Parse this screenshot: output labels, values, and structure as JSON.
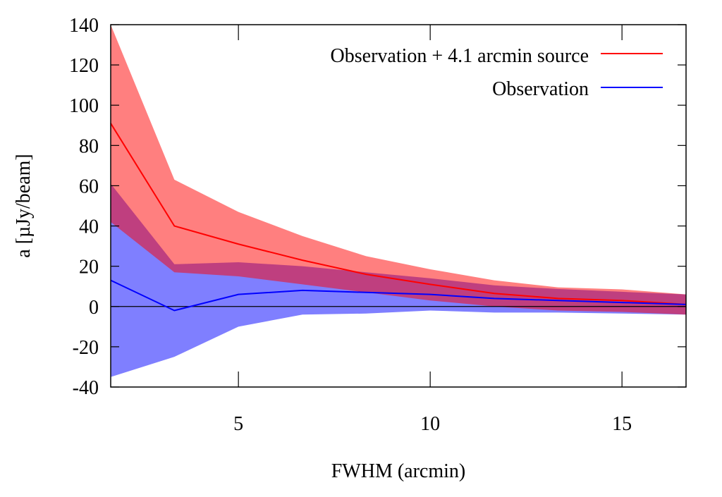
{
  "chart_data": {
    "type": "line",
    "title": "",
    "xlabel": "FWHM (arcmin)",
    "ylabel": "a [µJy/beam]",
    "xlim": [
      1.67,
      16.67
    ],
    "ylim": [
      -40,
      140
    ],
    "xticks": [
      5,
      10,
      15
    ],
    "yticks": [
      -40,
      -20,
      0,
      20,
      40,
      60,
      80,
      100,
      120,
      140
    ],
    "grid": false,
    "zero_line": true,
    "legend_position": "top-right",
    "x": [
      1.67,
      3.33,
      5,
      6.67,
      8.33,
      10,
      11.67,
      13.33,
      15,
      16.67
    ],
    "series": [
      {
        "name": "Observation + 4.1 arcmin source",
        "color": "#ff0000",
        "values": [
          91,
          40,
          31,
          23,
          16,
          11,
          6.5,
          4,
          3,
          1
        ],
        "band_upper": [
          140,
          63,
          47,
          35,
          25,
          18.5,
          13,
          9.5,
          8.5,
          6
        ],
        "band_lower": [
          42,
          17,
          15,
          11,
          7,
          3,
          0,
          -2,
          -2.7,
          -4
        ]
      },
      {
        "name": "Observation",
        "color": "#0000ff",
        "values": [
          13,
          -2,
          6,
          8,
          7,
          6,
          4,
          3,
          2,
          1
        ],
        "band_upper": [
          61,
          21,
          22,
          20,
          17,
          14,
          10.5,
          8.7,
          7.3,
          6
        ],
        "band_lower": [
          -35,
          -25,
          -10,
          -4,
          -3.5,
          -2,
          -3,
          -3,
          -3.5,
          -4
        ]
      }
    ]
  }
}
